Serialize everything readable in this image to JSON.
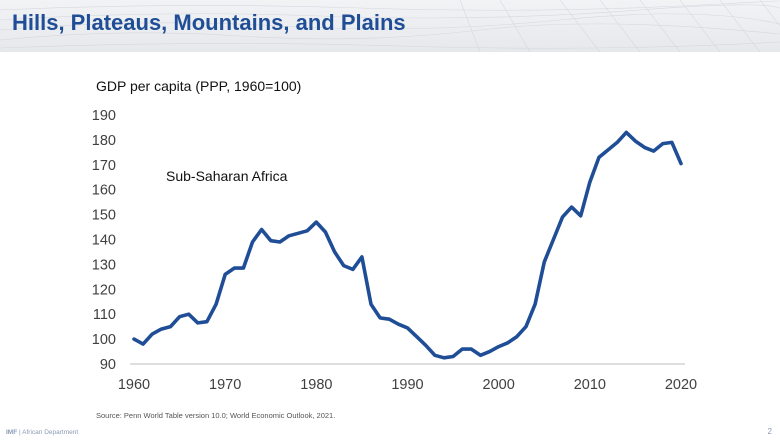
{
  "slide": {
    "title": "Hills, Plateaus, Mountains, and Plains",
    "source": "Source: Penn World Table version 10.0; World Economic Outlook, 2021.",
    "footer_org": "IMF",
    "footer_sep": " | ",
    "footer_dept": "African Department",
    "page_number": "2"
  },
  "chart_data": {
    "type": "line",
    "title": "",
    "ylabel": "GDP per capita (PPP, 1960=100)",
    "xlabel": "",
    "annotation": "Sub-Saharan Africa",
    "xlim": [
      1960,
      2020
    ],
    "ylim": [
      90,
      190
    ],
    "xticks": [
      1960,
      1970,
      1980,
      1990,
      2000,
      2010,
      2020
    ],
    "yticks": [
      90,
      100,
      110,
      120,
      130,
      140,
      150,
      160,
      170,
      180,
      190
    ],
    "grid": false,
    "line_color": "#1f4e96",
    "series": [
      {
        "name": "Sub-Saharan Africa",
        "x": [
          1960,
          1961,
          1962,
          1963,
          1964,
          1965,
          1966,
          1967,
          1968,
          1969,
          1970,
          1971,
          1972,
          1973,
          1974,
          1975,
          1976,
          1977,
          1978,
          1979,
          1980,
          1981,
          1982,
          1983,
          1984,
          1985,
          1986,
          1987,
          1988,
          1989,
          1990,
          1991,
          1992,
          1993,
          1994,
          1995,
          1996,
          1997,
          1998,
          1999,
          2000,
          2001,
          2002,
          2003,
          2004,
          2005,
          2006,
          2007,
          2008,
          2009,
          2010,
          2011,
          2012,
          2013,
          2014,
          2015,
          2016,
          2017,
          2018,
          2019,
          2020
        ],
        "values": [
          100,
          98,
          102,
          104,
          105,
          109,
          110,
          106.5,
          107,
          114,
          126,
          128.5,
          128.5,
          139,
          144,
          139.5,
          139,
          141.5,
          142.5,
          143.5,
          147,
          143,
          135,
          129.5,
          128,
          133,
          114,
          108.5,
          108,
          106,
          104.5,
          101,
          97.5,
          93.5,
          92.5,
          93,
          96,
          96,
          93.5,
          95,
          97,
          98.5,
          101,
          105,
          114,
          131,
          140,
          149,
          153,
          149.5,
          163,
          173,
          176,
          179,
          183,
          179.5,
          177,
          175.5,
          178.5,
          179,
          170.5
        ]
      }
    ]
  }
}
